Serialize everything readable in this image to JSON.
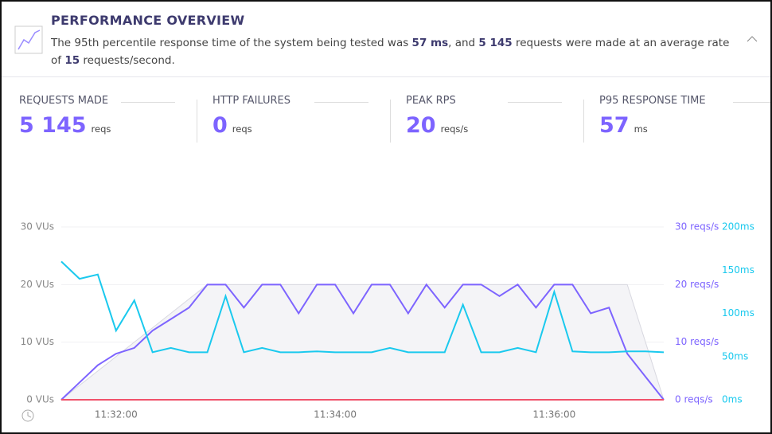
{
  "header": {
    "title": "PERFORMANCE OVERVIEW",
    "description": [
      "The 95th percentile response time of the system being tested was ",
      "57 ms",
      ", and ",
      "5 145",
      " requests were made at an average rate of ",
      "15",
      " requests/second."
    ]
  },
  "stats": [
    {
      "label": "REQUESTS MADE",
      "value": "5 145",
      "unit": "reqs"
    },
    {
      "label": "HTTP FAILURES",
      "value": "0",
      "unit": "reqs"
    },
    {
      "label": "PEAK RPS",
      "value": "20",
      "unit": "reqs/s"
    },
    {
      "label": "P95 RESPONSE TIME",
      "value": "57",
      "unit": "ms"
    }
  ],
  "chart_data": {
    "type": "line",
    "x": [
      "11:31:30",
      "11:31:40",
      "11:31:50",
      "11:32:00",
      "11:32:10",
      "11:32:20",
      "11:32:30",
      "11:32:40",
      "11:32:50",
      "11:33:00",
      "11:33:10",
      "11:33:20",
      "11:33:30",
      "11:33:40",
      "11:33:50",
      "11:34:00",
      "11:34:10",
      "11:34:20",
      "11:34:30",
      "11:34:40",
      "11:34:50",
      "11:35:00",
      "11:35:10",
      "11:35:20",
      "11:35:30",
      "11:35:40",
      "11:35:50",
      "11:36:00",
      "11:36:10",
      "11:36:20",
      "11:36:30",
      "11:36:40",
      "11:36:50",
      "11:37:00"
    ],
    "xlim": [
      "11:31:30",
      "11:37:00"
    ],
    "xticks": [
      "11:32:00",
      "11:34:00",
      "11:36:00"
    ],
    "ylim": [
      0,
      30
    ],
    "yticks": [
      {
        "value": 0,
        "label": "0 VUs"
      },
      {
        "value": 10,
        "label": "10 VUs"
      },
      {
        "value": 20,
        "label": "20 VUs"
      },
      {
        "value": 30,
        "label": "30 VUs"
      }
    ],
    "y2lim": [
      0,
      30
    ],
    "y2ticks": [
      {
        "value": 0,
        "label": "0 reqs/s"
      },
      {
        "value": 10,
        "label": "10 reqs/s"
      },
      {
        "value": 20,
        "label": "20 reqs/s"
      },
      {
        "value": 30,
        "label": "30 reqs/s"
      }
    ],
    "y3lim": [
      0,
      200
    ],
    "y3ticks": [
      {
        "value": 0,
        "label": "0ms"
      },
      {
        "value": 50,
        "label": "50ms"
      },
      {
        "value": 100,
        "label": "100ms"
      },
      {
        "value": 150,
        "label": "150ms"
      },
      {
        "value": 200,
        "label": "200ms"
      }
    ],
    "grid": true,
    "series": [
      {
        "kind": "area",
        "axis": "y",
        "color": "#d8d8e0",
        "values": [
          0,
          2.5,
          5,
          7.5,
          10,
          12.5,
          15,
          17.5,
          20,
          20,
          20,
          20,
          20,
          20,
          20,
          20,
          20,
          20,
          20,
          20,
          20,
          20,
          20,
          20,
          20,
          20,
          20,
          20,
          20,
          20,
          20,
          20,
          10,
          0
        ]
      },
      {
        "kind": "line",
        "axis": "y2",
        "color": "#7d64ff",
        "values": [
          0,
          3,
          6,
          8,
          9,
          12,
          14,
          16,
          20,
          20,
          16,
          20,
          20,
          15,
          20,
          20,
          15,
          20,
          20,
          15,
          20,
          16,
          20,
          20,
          18,
          20,
          16,
          20,
          20,
          15,
          16,
          8,
          4,
          0
        ]
      },
      {
        "kind": "line",
        "axis": "y3",
        "color": "#1ac9ee",
        "values": [
          160,
          140,
          145,
          80,
          115,
          55,
          60,
          55,
          55,
          120,
          55,
          60,
          55,
          55,
          56,
          55,
          55,
          55,
          60,
          55,
          55,
          55,
          110,
          55,
          55,
          60,
          55,
          125,
          56,
          55,
          55,
          56,
          56,
          55
        ]
      },
      {
        "kind": "line",
        "axis": "y",
        "color": "#f0526b",
        "values": [
          0,
          0,
          0,
          0,
          0,
          0,
          0,
          0,
          0,
          0,
          0,
          0,
          0,
          0,
          0,
          0,
          0,
          0,
          0,
          0,
          0,
          0,
          0,
          0,
          0,
          0,
          0,
          0,
          0,
          0,
          0,
          0,
          0,
          0
        ]
      }
    ]
  }
}
